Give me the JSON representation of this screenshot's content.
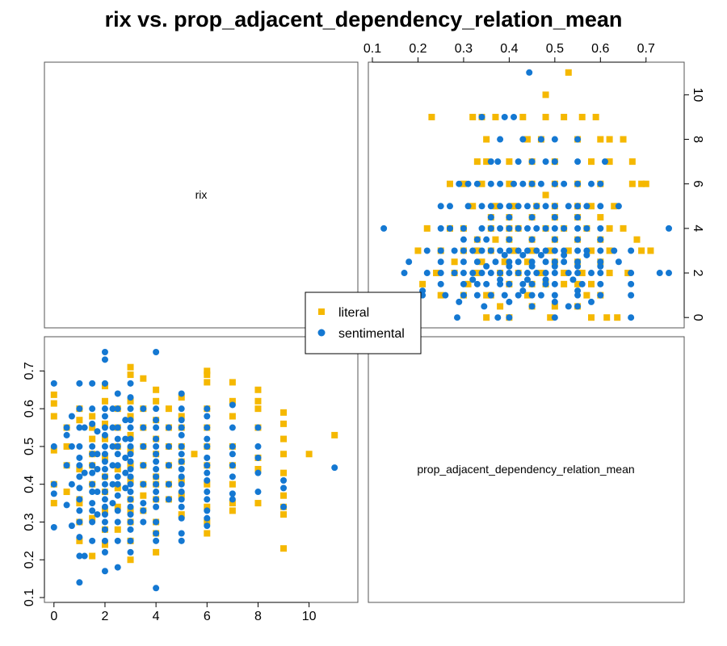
{
  "chart_data": {
    "type": "scatter",
    "layout": "pairs-matrix",
    "title": "rix vs. prop_adjacent_dependency_relation_mean",
    "variables": [
      "rix",
      "prop_adjacent_dependency_relation_mean"
    ],
    "axes": {
      "rix": {
        "range": [
          -0.5,
          11.5
        ],
        "ticks": [
          0,
          2,
          4,
          6,
          8,
          10
        ]
      },
      "prop_adjacent_dependency_relation_mean": {
        "range": [
          0.1,
          0.75
        ],
        "ticks": [
          0.1,
          0.2,
          0.3,
          0.4,
          0.5,
          0.6,
          0.7
        ]
      }
    },
    "legend": {
      "placement": "center",
      "entries": [
        {
          "label": "literal",
          "color": "#F5B800",
          "marker": "square"
        },
        {
          "label": "sentimental",
          "color": "#1478D2",
          "marker": "circle"
        }
      ]
    },
    "series": [
      {
        "name": "literal",
        "color": "#F5B800",
        "points": [
          [
            0,
            0.637
          ],
          [
            0,
            0.614
          ],
          [
            0,
            0.49
          ],
          [
            0,
            0.4
          ],
          [
            0,
            0.58
          ],
          [
            0,
            0.35
          ],
          [
            0.5,
            0.55
          ],
          [
            0.5,
            0.45
          ],
          [
            0.5,
            0.5
          ],
          [
            0.5,
            0.38
          ],
          [
            1,
            0.35
          ],
          [
            1,
            0.6
          ],
          [
            1,
            0.57
          ],
          [
            1,
            0.44
          ],
          [
            1,
            0.36
          ],
          [
            1,
            0.3
          ],
          [
            1,
            0.25
          ],
          [
            1.5,
            0.55
          ],
          [
            1.5,
            0.52
          ],
          [
            1.5,
            0.48
          ],
          [
            1.5,
            0.4
          ],
          [
            1.5,
            0.58
          ],
          [
            1.5,
            0.31
          ],
          [
            1.5,
            0.21
          ],
          [
            1.5,
            0.45
          ],
          [
            2,
            0.62
          ],
          [
            2,
            0.56
          ],
          [
            2,
            0.52
          ],
          [
            2,
            0.47
          ],
          [
            2,
            0.42
          ],
          [
            2,
            0.38
          ],
          [
            2,
            0.33
          ],
          [
            2,
            0.28
          ],
          [
            2,
            0.24
          ],
          [
            2,
            0.66
          ],
          [
            2.5,
            0.6
          ],
          [
            2.5,
            0.55
          ],
          [
            2.5,
            0.5
          ],
          [
            2.5,
            0.44
          ],
          [
            2.5,
            0.39
          ],
          [
            2.5,
            0.34
          ],
          [
            2.5,
            0.28
          ],
          [
            3,
            0.71
          ],
          [
            3,
            0.69
          ],
          [
            3,
            0.62
          ],
          [
            3,
            0.58
          ],
          [
            3,
            0.53
          ],
          [
            3,
            0.49
          ],
          [
            3,
            0.45
          ],
          [
            3,
            0.41
          ],
          [
            3,
            0.36
          ],
          [
            3,
            0.33
          ],
          [
            3,
            0.3
          ],
          [
            3,
            0.25
          ],
          [
            3,
            0.2
          ],
          [
            3.5,
            0.68
          ],
          [
            3.5,
            0.6
          ],
          [
            3.5,
            0.55
          ],
          [
            3.5,
            0.5
          ],
          [
            3.5,
            0.45
          ],
          [
            3.5,
            0.4
          ],
          [
            3.5,
            0.37
          ],
          [
            3.5,
            0.33
          ],
          [
            4,
            0.65
          ],
          [
            4,
            0.62
          ],
          [
            4,
            0.57
          ],
          [
            4,
            0.52
          ],
          [
            4,
            0.48
          ],
          [
            4,
            0.42
          ],
          [
            4,
            0.4
          ],
          [
            4,
            0.36
          ],
          [
            4,
            0.3
          ],
          [
            4,
            0.27
          ],
          [
            4,
            0.22
          ],
          [
            4.5,
            0.6
          ],
          [
            4.5,
            0.55
          ],
          [
            4.5,
            0.5
          ],
          [
            4.5,
            0.45
          ],
          [
            4.5,
            0.4
          ],
          [
            4.5,
            0.36
          ],
          [
            5,
            0.63
          ],
          [
            5,
            0.58
          ],
          [
            5,
            0.55
          ],
          [
            5,
            0.5
          ],
          [
            5,
            0.46
          ],
          [
            5,
            0.41
          ],
          [
            5,
            0.37
          ],
          [
            5,
            0.32
          ],
          [
            5.5,
            0.48
          ],
          [
            6,
            0.7
          ],
          [
            6,
            0.69
          ],
          [
            6,
            0.67
          ],
          [
            6,
            0.6
          ],
          [
            6,
            0.55
          ],
          [
            6,
            0.5
          ],
          [
            6,
            0.45
          ],
          [
            6,
            0.4
          ],
          [
            6,
            0.34
          ],
          [
            6,
            0.3
          ],
          [
            6,
            0.27
          ],
          [
            7,
            0.67
          ],
          [
            7,
            0.62
          ],
          [
            7,
            0.58
          ],
          [
            7,
            0.5
          ],
          [
            7,
            0.45
          ],
          [
            7,
            0.4
          ],
          [
            7,
            0.35
          ],
          [
            7,
            0.33
          ],
          [
            8,
            0.65
          ],
          [
            8,
            0.62
          ],
          [
            8,
            0.6
          ],
          [
            8,
            0.55
          ],
          [
            8,
            0.47
          ],
          [
            8,
            0.44
          ],
          [
            8,
            0.35
          ],
          [
            9,
            0.59
          ],
          [
            9,
            0.56
          ],
          [
            9,
            0.52
          ],
          [
            9,
            0.48
          ],
          [
            9,
            0.43
          ],
          [
            9,
            0.37
          ],
          [
            9,
            0.34
          ],
          [
            9,
            0.32
          ],
          [
            9,
            0.23
          ],
          [
            10,
            0.48
          ],
          [
            11,
            0.53
          ]
        ]
      },
      {
        "name": "sentimental",
        "color": "#1478D2",
        "points": [
          [
            0,
            0.667
          ],
          [
            0,
            0.5
          ],
          [
            0,
            0.4
          ],
          [
            0,
            0.375
          ],
          [
            0,
            0.286
          ],
          [
            0.5,
            0.55
          ],
          [
            0.5,
            0.53
          ],
          [
            0.5,
            0.45
          ],
          [
            0.5,
            0.345
          ],
          [
            0.7,
            0.58
          ],
          [
            0.7,
            0.5
          ],
          [
            0.7,
            0.4
          ],
          [
            0.7,
            0.29
          ],
          [
            1,
            0.667
          ],
          [
            1,
            0.6
          ],
          [
            1,
            0.55
          ],
          [
            1,
            0.5
          ],
          [
            1,
            0.47
          ],
          [
            1,
            0.45
          ],
          [
            1,
            0.42
          ],
          [
            1,
            0.39
          ],
          [
            1,
            0.36
          ],
          [
            1,
            0.33
          ],
          [
            1,
            0.3
          ],
          [
            1,
            0.26
          ],
          [
            1,
            0.21
          ],
          [
            1,
            0.14
          ],
          [
            1.2,
            0.55
          ],
          [
            1.2,
            0.43
          ],
          [
            1.2,
            0.21
          ],
          [
            1.5,
            0.667
          ],
          [
            1.5,
            0.6
          ],
          [
            1.5,
            0.56
          ],
          [
            1.5,
            0.5
          ],
          [
            1.5,
            0.48
          ],
          [
            1.5,
            0.45
          ],
          [
            1.5,
            0.43
          ],
          [
            1.5,
            0.4
          ],
          [
            1.5,
            0.38
          ],
          [
            1.5,
            0.35
          ],
          [
            1.5,
            0.33
          ],
          [
            1.5,
            0.3
          ],
          [
            1.5,
            0.25
          ],
          [
            1.7,
            0.54
          ],
          [
            1.7,
            0.48
          ],
          [
            1.7,
            0.44
          ],
          [
            1.7,
            0.38
          ],
          [
            1.7,
            0.32
          ],
          [
            2,
            0.75
          ],
          [
            2,
            0.73
          ],
          [
            2,
            0.667
          ],
          [
            2,
            0.6
          ],
          [
            2,
            0.58
          ],
          [
            2,
            0.55
          ],
          [
            2,
            0.53
          ],
          [
            2,
            0.5
          ],
          [
            2,
            0.48
          ],
          [
            2,
            0.46
          ],
          [
            2,
            0.44
          ],
          [
            2,
            0.42
          ],
          [
            2,
            0.4
          ],
          [
            2,
            0.38
          ],
          [
            2,
            0.36
          ],
          [
            2,
            0.34
          ],
          [
            2,
            0.32
          ],
          [
            2,
            0.3
          ],
          [
            2,
            0.28
          ],
          [
            2,
            0.25
          ],
          [
            2,
            0.22
          ],
          [
            2,
            0.17
          ],
          [
            2.3,
            0.6
          ],
          [
            2.3,
            0.55
          ],
          [
            2.3,
            0.5
          ],
          [
            2.3,
            0.45
          ],
          [
            2.3,
            0.4
          ],
          [
            2.3,
            0.35
          ],
          [
            2.5,
            0.64
          ],
          [
            2.5,
            0.6
          ],
          [
            2.5,
            0.55
          ],
          [
            2.5,
            0.52
          ],
          [
            2.5,
            0.5
          ],
          [
            2.5,
            0.48
          ],
          [
            2.5,
            0.45
          ],
          [
            2.5,
            0.42
          ],
          [
            2.5,
            0.4
          ],
          [
            2.5,
            0.37
          ],
          [
            2.5,
            0.33
          ],
          [
            2.5,
            0.3
          ],
          [
            2.5,
            0.25
          ],
          [
            2.5,
            0.18
          ],
          [
            2.8,
            0.57
          ],
          [
            2.8,
            0.52
          ],
          [
            2.8,
            0.47
          ],
          [
            2.8,
            0.43
          ],
          [
            2.8,
            0.39
          ],
          [
            3,
            0.667
          ],
          [
            3,
            0.63
          ],
          [
            3,
            0.6
          ],
          [
            3,
            0.57
          ],
          [
            3,
            0.55
          ],
          [
            3,
            0.52
          ],
          [
            3,
            0.5
          ],
          [
            3,
            0.48
          ],
          [
            3,
            0.46
          ],
          [
            3,
            0.44
          ],
          [
            3,
            0.42
          ],
          [
            3,
            0.4
          ],
          [
            3,
            0.38
          ],
          [
            3,
            0.36
          ],
          [
            3,
            0.34
          ],
          [
            3,
            0.32
          ],
          [
            3,
            0.3
          ],
          [
            3,
            0.28
          ],
          [
            3,
            0.25
          ],
          [
            3,
            0.22
          ],
          [
            3.5,
            0.6
          ],
          [
            3.5,
            0.55
          ],
          [
            3.5,
            0.5
          ],
          [
            3.5,
            0.45
          ],
          [
            3.5,
            0.4
          ],
          [
            3.5,
            0.35
          ],
          [
            3.5,
            0.33
          ],
          [
            3.5,
            0.3
          ],
          [
            4,
            0.75
          ],
          [
            4,
            0.6
          ],
          [
            4,
            0.57
          ],
          [
            4,
            0.55
          ],
          [
            4,
            0.52
          ],
          [
            4,
            0.5
          ],
          [
            4,
            0.48
          ],
          [
            4,
            0.46
          ],
          [
            4,
            0.44
          ],
          [
            4,
            0.42
          ],
          [
            4,
            0.4
          ],
          [
            4,
            0.38
          ],
          [
            4,
            0.36
          ],
          [
            4,
            0.34
          ],
          [
            4,
            0.3
          ],
          [
            4,
            0.27
          ],
          [
            4,
            0.25
          ],
          [
            4,
            0.125
          ],
          [
            4.5,
            0.55
          ],
          [
            4.5,
            0.5
          ],
          [
            4.5,
            0.45
          ],
          [
            4.5,
            0.4
          ],
          [
            4.5,
            0.36
          ],
          [
            5,
            0.64
          ],
          [
            5,
            0.6
          ],
          [
            5,
            0.57
          ],
          [
            5,
            0.55
          ],
          [
            5,
            0.53
          ],
          [
            5,
            0.5
          ],
          [
            5,
            0.48
          ],
          [
            5,
            0.46
          ],
          [
            5,
            0.44
          ],
          [
            5,
            0.42
          ],
          [
            5,
            0.4
          ],
          [
            5,
            0.38
          ],
          [
            5,
            0.36
          ],
          [
            5,
            0.34
          ],
          [
            5,
            0.31
          ],
          [
            5,
            0.27
          ],
          [
            5,
            0.25
          ],
          [
            6,
            0.6
          ],
          [
            6,
            0.58
          ],
          [
            6,
            0.55
          ],
          [
            6,
            0.52
          ],
          [
            6,
            0.5
          ],
          [
            6,
            0.47
          ],
          [
            6,
            0.45
          ],
          [
            6,
            0.43
          ],
          [
            6,
            0.41
          ],
          [
            6,
            0.38
          ],
          [
            6,
            0.36
          ],
          [
            6,
            0.33
          ],
          [
            6,
            0.31
          ],
          [
            6,
            0.29
          ],
          [
            7,
            0.61
          ],
          [
            7,
            0.55
          ],
          [
            7,
            0.5
          ],
          [
            7,
            0.48
          ],
          [
            7,
            0.45
          ],
          [
            7,
            0.42
          ],
          [
            7,
            0.375
          ],
          [
            7,
            0.36
          ],
          [
            8,
            0.55
          ],
          [
            8,
            0.5
          ],
          [
            8,
            0.47
          ],
          [
            8,
            0.43
          ],
          [
            8,
            0.38
          ],
          [
            9,
            0.41
          ],
          [
            9,
            0.39
          ],
          [
            9,
            0.34
          ],
          [
            11,
            0.444
          ]
        ]
      }
    ]
  }
}
